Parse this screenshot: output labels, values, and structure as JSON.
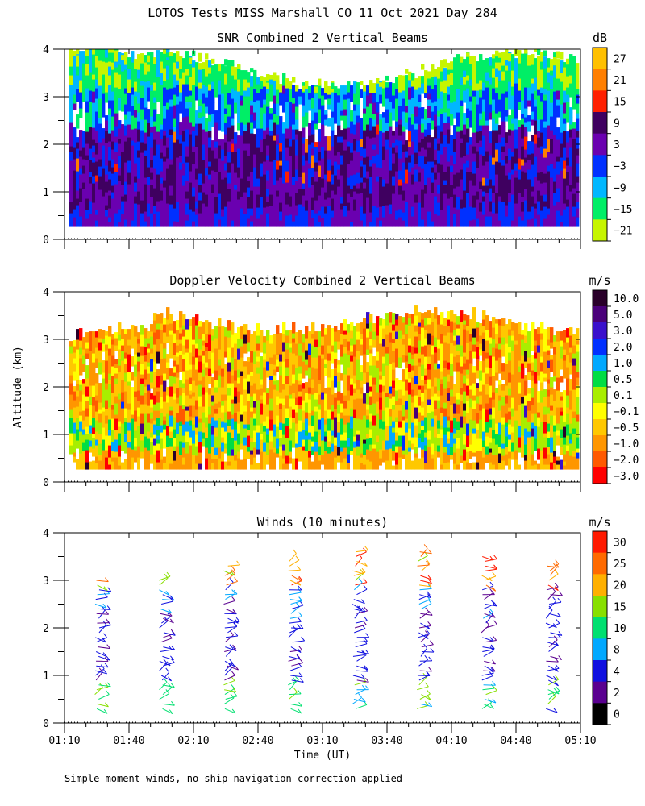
{
  "title": "LOTOS Tests MISS Marshall CO  11 Oct 2021 Day 284",
  "ylabel": "Altitude (km)",
  "xlabel": "Time (UT)",
  "footnote": "Simple moment winds, no ship navigation correction applied",
  "chart_data": [
    {
      "id": "snr",
      "type": "heatmap",
      "title": "SNR Combined 2 Vertical Beams",
      "units": "dB",
      "x_ticks": [],
      "y_ticks": [
        "0",
        "1",
        "2",
        "3",
        "4"
      ],
      "ylim": [
        0,
        4
      ],
      "x_range_minutes": [
        70,
        310
      ],
      "colorbar": {
        "labels": [
          "27",
          "21",
          "15",
          "9",
          "3",
          "−3",
          "−9",
          "−15",
          "−21"
        ],
        "colors": [
          "#ffc000",
          "#ff7f00",
          "#ff2000",
          "#3f0060",
          "#6a00b0",
          "#0030ff",
          "#00b7ff",
          "#00ee66",
          "#c6f500"
        ]
      }
    },
    {
      "id": "doppler",
      "type": "heatmap",
      "title": "Doppler Velocity Combined 2 Vertical Beams",
      "units": "m/s",
      "x_ticks": [],
      "y_ticks": [
        "0",
        "1",
        "2",
        "3",
        "4"
      ],
      "ylim": [
        0,
        4
      ],
      "x_range_minutes": [
        70,
        310
      ],
      "colorbar": {
        "labels": [
          "10.0",
          "5.0",
          "3.0",
          "2.0",
          "1.0",
          "0.5",
          "0.1",
          "−0.1",
          "−0.5",
          "−1.0",
          "−2.0",
          "−3.0"
        ],
        "colors": [
          "#2a002a",
          "#4a007a",
          "#3a10cc",
          "#0030ff",
          "#00a8ff",
          "#00dd44",
          "#a8ee00",
          "#ffff00",
          "#ffc800",
          "#ff9600",
          "#ff5a00",
          "#ff0000"
        ]
      }
    },
    {
      "id": "winds",
      "type": "scatter",
      "title": "Winds (10 minutes)",
      "units": "m/s",
      "x_ticks": [
        "01:10",
        "01:40",
        "02:10",
        "02:40",
        "03:10",
        "03:40",
        "04:10",
        "04:40",
        "05:10"
      ],
      "y_ticks": [
        "0",
        "1",
        "2",
        "3",
        "4"
      ],
      "ylim": [
        0,
        4
      ],
      "x_range_minutes": [
        70,
        310
      ],
      "profile_times": [
        85,
        115,
        145,
        175,
        205,
        235,
        265,
        295
      ],
      "profile_tops_km": [
        3.05,
        3.1,
        3.35,
        3.45,
        3.7,
        3.7,
        3.55,
        3.35
      ],
      "colorbar": {
        "labels": [
          "30",
          "25",
          "20",
          "15",
          "10",
          "8",
          "4",
          "2",
          "0"
        ],
        "colors": [
          "#ff1a00",
          "#ff6a00",
          "#ffb000",
          "#88e000",
          "#00e070",
          "#00a8ff",
          "#1010e0",
          "#5a0090",
          "#000000"
        ]
      }
    }
  ]
}
